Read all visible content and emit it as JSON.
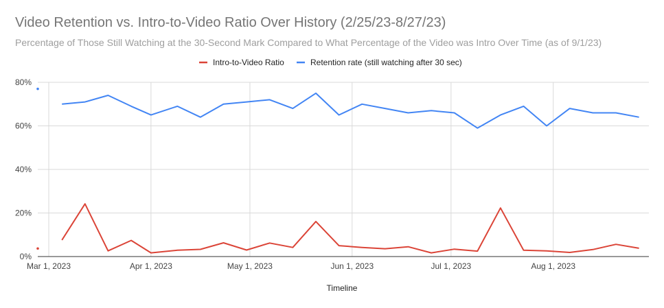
{
  "chart_data": {
    "type": "line",
    "title": "Video Retention vs. Intro-to-Video Ratio Over History (2/25/23-8/27/23)",
    "subtitle": "Percentage of Those Still Watching at the 30-Second Mark Compared to What Percentage of the Video was Intro Over Time (as of 9/1/23)",
    "xlabel": "Timeline",
    "ylabel": "",
    "y_ticks": [
      "0%",
      "20%",
      "40%",
      "60%",
      "80%"
    ],
    "ylim": [
      0,
      80
    ],
    "xlim": [
      "2023-03-01",
      "2023-08-30"
    ],
    "x_ticks": [
      {
        "date": "2023-03-01",
        "label": "Mar 1, 2023"
      },
      {
        "date": "2023-04-01",
        "label": "Apr 1, 2023"
      },
      {
        "date": "2023-05-01",
        "label": "May 1, 2023"
      },
      {
        "date": "2023-06-01",
        "label": "Jun 1, 2023"
      },
      {
        "date": "2023-07-01",
        "label": "Jul 1, 2023"
      },
      {
        "date": "2023-08-01",
        "label": "Aug 1, 2023"
      }
    ],
    "grid": true,
    "legend_position": "top-center",
    "x": [
      "2023-02-25",
      "2023-03-05",
      "2023-03-12",
      "2023-03-19",
      "2023-03-26",
      "2023-04-01",
      "2023-04-09",
      "2023-04-16",
      "2023-04-23",
      "2023-04-30",
      "2023-05-07",
      "2023-05-14",
      "2023-05-21",
      "2023-05-28",
      "2023-06-04",
      "2023-06-11",
      "2023-06-18",
      "2023-06-25",
      "2023-07-02",
      "2023-07-09",
      "2023-07-16",
      "2023-07-23",
      "2023-07-30",
      "2023-08-06",
      "2023-08-13",
      "2023-08-20",
      "2023-08-27"
    ],
    "series": [
      {
        "name": "Intro-to-Video Ratio",
        "color": "#db4437",
        "values": [
          3.7,
          7.6,
          24.2,
          2.6,
          7.4,
          1.7,
          2.9,
          3.3,
          6.3,
          3.0,
          6.2,
          4.2,
          16.1,
          5.0,
          4.2,
          3.6,
          4.5,
          1.7,
          3.4,
          2.5,
          22.3,
          2.9,
          2.6,
          1.9,
          3.2,
          5.6,
          3.8
        ]
      },
      {
        "name": "Retention rate (still watching after 30 sec)",
        "color": "#4285f4",
        "values": [
          77,
          70,
          71,
          74,
          69,
          65,
          69,
          64,
          70,
          71,
          72,
          68,
          75,
          65,
          70,
          68,
          66,
          67,
          66,
          59,
          65,
          69,
          60,
          68,
          66,
          66,
          64
        ]
      }
    ]
  }
}
